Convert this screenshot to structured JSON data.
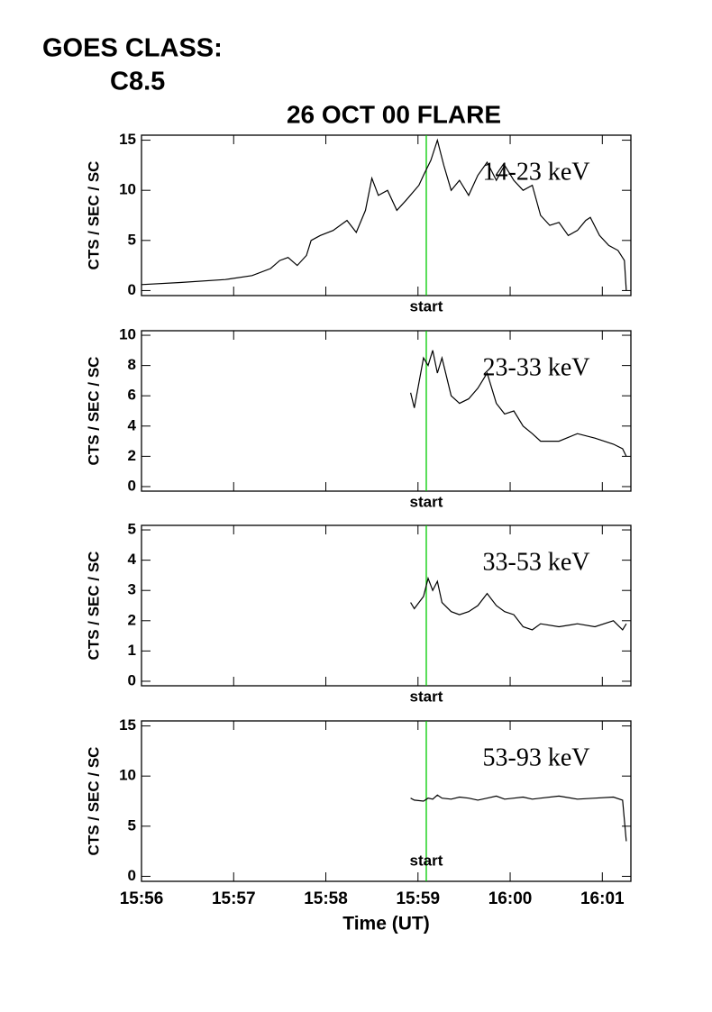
{
  "header": {
    "goes_label": "GOES CLASS:",
    "goes_class": "C8.5"
  },
  "chart_data": [
    {
      "type": "line",
      "title": "26 OCT 00 FLARE",
      "ylabel": "CTS / SEC / SC",
      "band": "14-23 keV",
      "color": "#000000",
      "marker": {
        "x": 959.09,
        "label": "start",
        "color": "#00cc00"
      },
      "xlim": [
        956,
        961.31
      ],
      "ylim": [
        -0.5,
        15.5
      ],
      "yticks": [
        0,
        5,
        10,
        15
      ],
      "x": [
        956.0,
        956.42,
        956.91,
        957.2,
        957.4,
        957.5,
        957.59,
        957.69,
        957.79,
        957.84,
        957.94,
        958.08,
        958.23,
        958.33,
        958.43,
        958.5,
        958.57,
        958.67,
        958.77,
        958.87,
        959.01,
        959.06,
        959.14,
        959.21,
        959.28,
        959.36,
        959.45,
        959.55,
        959.65,
        959.75,
        959.85,
        959.94,
        960.04,
        960.14,
        960.24,
        960.33,
        960.43,
        960.53,
        960.63,
        960.73,
        960.82,
        960.87,
        960.97,
        961.07,
        961.17,
        961.24,
        961.26
      ],
      "values": [
        0.6,
        0.8,
        1.1,
        1.5,
        2.2,
        3.0,
        3.3,
        2.5,
        3.5,
        5.0,
        5.5,
        6.0,
        7.0,
        5.8,
        8.0,
        11.2,
        9.5,
        10.0,
        8.0,
        9.0,
        10.5,
        11.5,
        13.0,
        15.0,
        12.5,
        10.0,
        11.0,
        9.5,
        11.5,
        12.8,
        11.0,
        12.5,
        11.0,
        10.0,
        10.5,
        7.5,
        6.5,
        6.8,
        5.5,
        6.0,
        7.0,
        7.3,
        5.5,
        4.5,
        4.0,
        3.0,
        0
      ]
    },
    {
      "type": "line",
      "ylabel": "CTS / SEC / SC",
      "band": "23-33 keV",
      "color": "#000000",
      "marker": {
        "x": 959.09,
        "label": "start",
        "color": "#00cc00"
      },
      "xlim": [
        956,
        961.31
      ],
      "ylim": [
        -0.3,
        10.3
      ],
      "yticks": [
        0,
        2,
        4,
        6,
        8,
        10
      ],
      "x": [
        958.92,
        958.96,
        959.06,
        959.11,
        959.16,
        959.21,
        959.26,
        959.36,
        959.45,
        959.55,
        959.65,
        959.75,
        959.85,
        959.94,
        960.04,
        960.14,
        960.24,
        960.33,
        960.53,
        960.73,
        960.92,
        961.12,
        961.22,
        961.26
      ],
      "values": [
        6.2,
        5.2,
        8.5,
        8.0,
        9.0,
        7.5,
        8.5,
        6.0,
        5.5,
        5.8,
        6.5,
        7.5,
        5.5,
        4.8,
        5.0,
        4.0,
        3.5,
        3.0,
        3.0,
        3.5,
        3.2,
        2.8,
        2.5,
        2.0
      ]
    },
    {
      "type": "line",
      "ylabel": "CTS / SEC / SC",
      "band": "33-53 keV",
      "color": "#000000",
      "marker": {
        "x": 959.09,
        "label": "start",
        "color": "#00cc00"
      },
      "xlim": [
        956,
        961.31
      ],
      "ylim": [
        -0.15,
        5.15
      ],
      "yticks": [
        0,
        1,
        2,
        3,
        4,
        5
      ],
      "x": [
        958.92,
        958.96,
        959.06,
        959.11,
        959.16,
        959.21,
        959.26,
        959.36,
        959.45,
        959.55,
        959.65,
        959.75,
        959.85,
        959.94,
        960.04,
        960.14,
        960.24,
        960.33,
        960.53,
        960.73,
        960.92,
        961.12,
        961.22,
        961.26
      ],
      "values": [
        2.6,
        2.4,
        2.8,
        3.4,
        3.0,
        3.3,
        2.6,
        2.3,
        2.2,
        2.3,
        2.5,
        2.9,
        2.5,
        2.3,
        2.2,
        1.8,
        1.7,
        1.9,
        1.8,
        1.9,
        1.8,
        2.0,
        1.7,
        1.9
      ]
    },
    {
      "type": "line",
      "ylabel": "CTS / SEC / SC",
      "band": "53-93 keV",
      "xlabel": "Time (UT)",
      "color": "#000000",
      "marker": {
        "x": 959.09,
        "label": "start",
        "color": "#00cc00"
      },
      "xlim": [
        956,
        961.31
      ],
      "ylim": [
        -0.5,
        15.5
      ],
      "yticks": [
        0,
        5,
        10,
        15
      ],
      "xticks": [
        {
          "value": 956,
          "label": "15:56"
        },
        {
          "value": 957,
          "label": "15:57"
        },
        {
          "value": 958,
          "label": "15:58"
        },
        {
          "value": 959,
          "label": "15:59"
        },
        {
          "value": 960,
          "label": "16:00"
        },
        {
          "value": 961,
          "label": "16:01"
        }
      ],
      "x": [
        958.92,
        958.96,
        959.06,
        959.11,
        959.16,
        959.21,
        959.26,
        959.36,
        959.45,
        959.55,
        959.65,
        959.75,
        959.85,
        959.94,
        960.04,
        960.14,
        960.24,
        960.33,
        960.53,
        960.73,
        960.92,
        961.12,
        961.22,
        961.26
      ],
      "values": [
        7.8,
        7.6,
        7.5,
        7.8,
        7.7,
        8.1,
        7.8,
        7.7,
        7.9,
        7.8,
        7.6,
        7.8,
        8.0,
        7.7,
        7.8,
        7.9,
        7.7,
        7.8,
        8.0,
        7.7,
        7.8,
        7.9,
        7.6,
        3.5
      ]
    }
  ]
}
